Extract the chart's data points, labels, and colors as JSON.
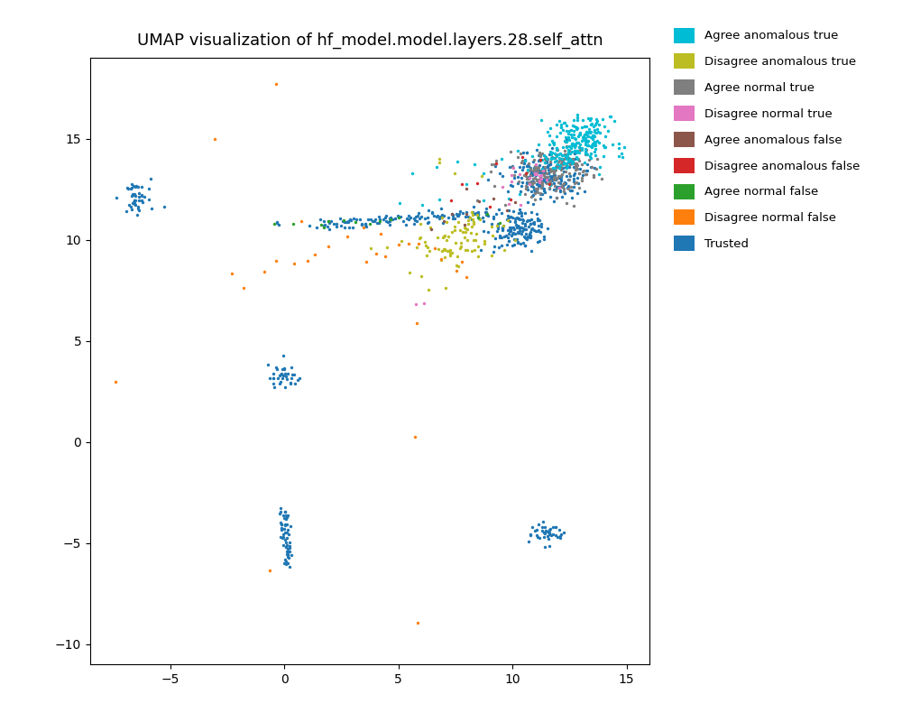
{
  "title": "UMAP visualization of hf_model.model.layers.28.self_attn",
  "xlim": [
    -8.5,
    16
  ],
  "ylim": [
    -11,
    19
  ],
  "xlabel": "",
  "ylabel": "",
  "xticks": [
    -5,
    0,
    5,
    10,
    15
  ],
  "yticks": [
    -10,
    -5,
    0,
    5,
    10,
    15
  ],
  "categories": [
    "Agree anomalous true",
    "Disagree anomalous true",
    "Agree normal true",
    "Disagree normal true",
    "Agree anomalous false",
    "Disagree anomalous false",
    "Agree normal false",
    "Disagree normal false",
    "Trusted"
  ],
  "colors": [
    "#00bcd4",
    "#bcbd22",
    "#7f7f7f",
    "#e377c2",
    "#8c564b",
    "#d62728",
    "#2ca02c",
    "#ff7f0e",
    "#1f77b4"
  ],
  "marker_size": 6,
  "background_color": "#ffffff",
  "title_fontsize": 13,
  "figsize": [
    10.0,
    8.0
  ],
  "dpi": 100
}
